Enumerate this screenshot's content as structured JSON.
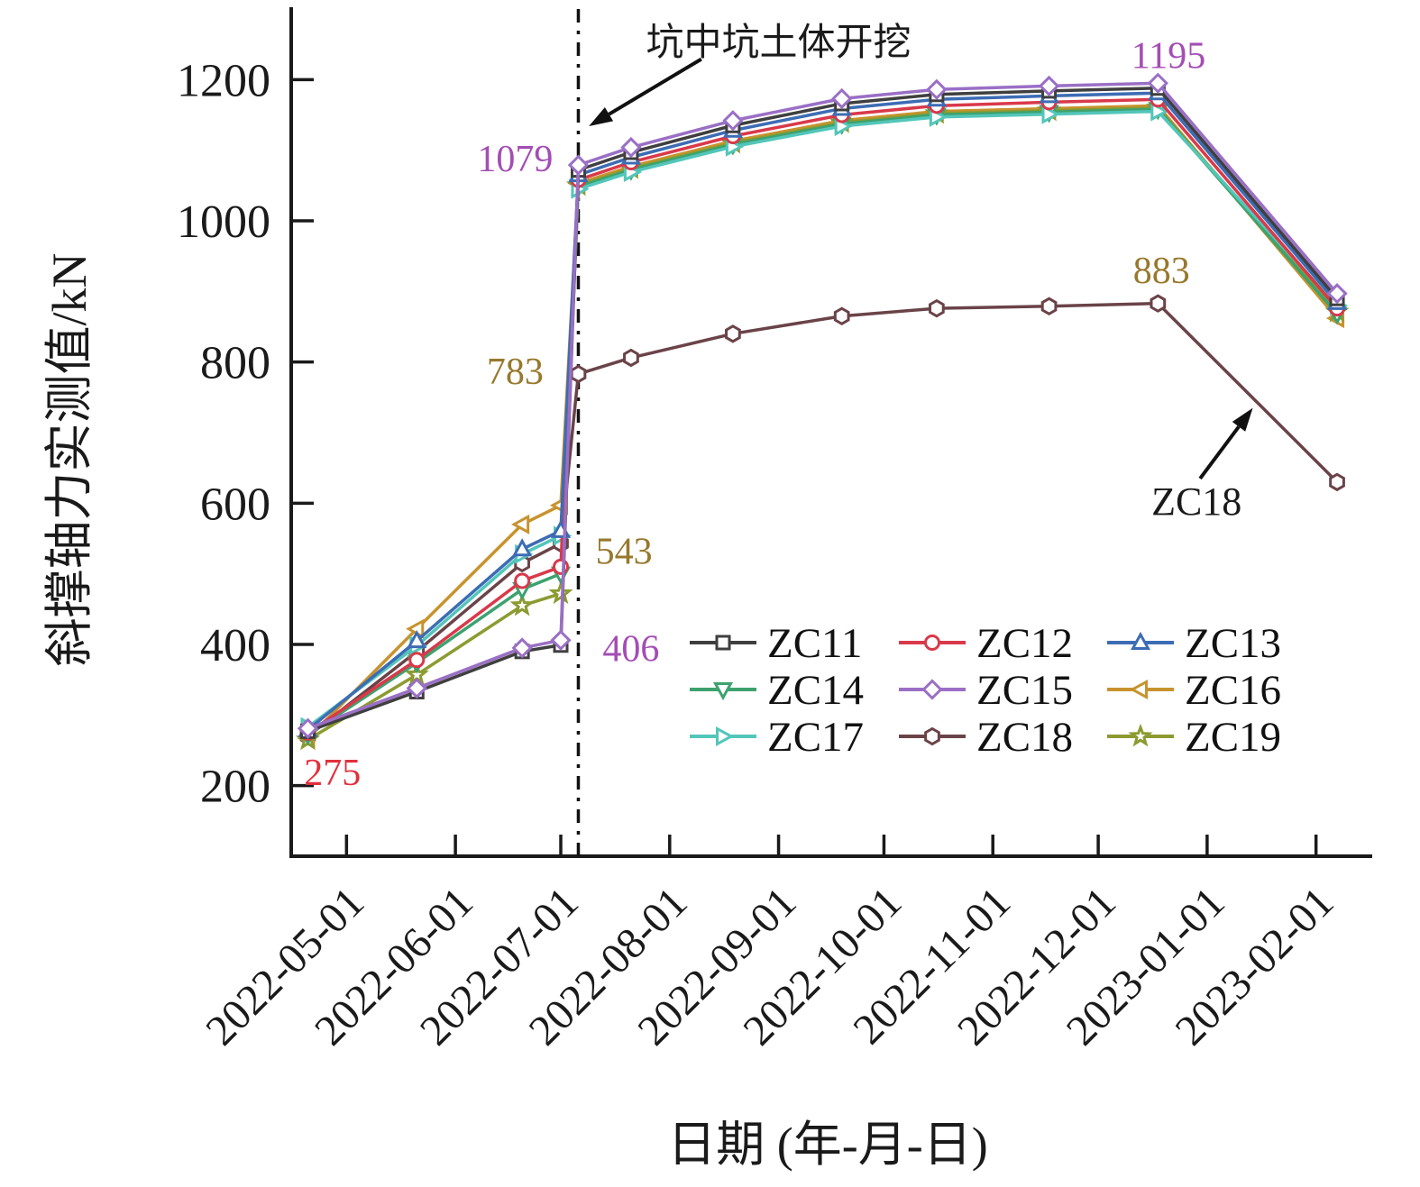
{
  "chart_data": {
    "type": "line",
    "title": "",
    "xlabel": "日期 (年-月-日)",
    "ylabel": "斜撑轴力实测值/kN",
    "grid": false,
    "legend_position": "inside lower-right (3 x 3 grid, no frame)",
    "ylim": [
      100,
      1300
    ],
    "y_ticks": [
      200,
      400,
      600,
      800,
      1000,
      1200
    ],
    "x_domain_days": [
      0,
      308
    ],
    "x_domain_dates": [
      "2022-04-15",
      "2023-02-17"
    ],
    "x_tick_labels": [
      "2022-05-01",
      "2022-06-01",
      "2022-07-01",
      "2022-08-01",
      "2022-09-01",
      "2022-10-01",
      "2022-11-01",
      "2022-12-01",
      "2023-01-01",
      "2023-02-01"
    ],
    "x_tick_days": [
      16,
      47,
      77,
      108,
      139,
      169,
      200,
      230,
      261,
      292
    ],
    "event_line": {
      "day": 82,
      "date": "2022-07-06",
      "label": "坑中坑土体开挖",
      "style": "dash-dot vertical line, black"
    },
    "sample_days": [
      5,
      36,
      66,
      77,
      82,
      97,
      126,
      157,
      184,
      216,
      247,
      298
    ],
    "sample_dates": [
      "2022-04-20",
      "2022-05-21",
      "2022-06-20",
      "2022-07-01",
      "2022-07-06",
      "2022-07-21",
      "2022-08-19",
      "2022-09-19",
      "2022-10-16",
      "2022-11-17",
      "2022-12-18",
      "2023-02-07"
    ],
    "series": [
      {
        "name": "ZC11",
        "color": "#3F3F3F",
        "marker": "square",
        "values": [
          277,
          333,
          390,
          399,
          1072,
          1097,
          1135,
          1166,
          1179,
          1184,
          1188,
          890
        ]
      },
      {
        "name": "ZC12",
        "color": "#D9394A",
        "marker": "circle",
        "values": [
          275,
          378,
          490,
          510,
          1058,
          1083,
          1120,
          1150,
          1163,
          1168,
          1172,
          876
        ]
      },
      {
        "name": "ZC13",
        "color": "#3D6CB4",
        "marker": "triangle-up",
        "values": [
          279,
          405,
          535,
          561,
          1065,
          1090,
          1128,
          1159,
          1172,
          1177,
          1181,
          884
        ]
      },
      {
        "name": "ZC14",
        "color": "#3DA26E",
        "marker": "triangle-down",
        "values": [
          272,
          374,
          478,
          500,
          1048,
          1072,
          1108,
          1137,
          1150,
          1154,
          1158,
          868
        ]
      },
      {
        "name": "ZC15",
        "color": "#9A6FC5",
        "marker": "diamond",
        "values": [
          281,
          338,
          395,
          406,
          1079,
          1104,
          1142,
          1173,
          1186,
          1191,
          1195,
          897
        ]
      },
      {
        "name": "ZC16",
        "color": "#C8932E",
        "marker": "triangle-left",
        "values": [
          267,
          422,
          570,
          597,
          1053,
          1077,
          1113,
          1142,
          1155,
          1159,
          1163,
          862
        ]
      },
      {
        "name": "ZC17",
        "color": "#53C6BA",
        "marker": "triangle-right",
        "values": [
          283,
          398,
          528,
          554,
          1045,
          1069,
          1105,
          1134,
          1147,
          1151,
          1155,
          880
        ]
      },
      {
        "name": "ZC18",
        "color": "#6A4348",
        "marker": "hexagon",
        "values": [
          270,
          390,
          515,
          543,
          783,
          806,
          840,
          865,
          876,
          879,
          883,
          630
        ]
      },
      {
        "name": "ZC19",
        "color": "#8C9B31",
        "marker": "star",
        "values": [
          265,
          357,
          455,
          472,
          1050,
          1074,
          1110,
          1139,
          1152,
          1156,
          1160,
          871
        ]
      }
    ],
    "draw_order": [
      "ZC18",
      "ZC16",
      "ZC19",
      "ZC14",
      "ZC17",
      "ZC12",
      "ZC13",
      "ZC11",
      "ZC15"
    ],
    "annotations": [
      {
        "text": "275",
        "color": "#E0313E",
        "day": 12,
        "value": 219
      },
      {
        "text": "1079",
        "color": "#A44DB5",
        "day": 64,
        "value": 1088
      },
      {
        "text": "783",
        "color": "#97792D",
        "day": 64,
        "value": 787
      },
      {
        "text": "543",
        "color": "#97792D",
        "day": 95,
        "value": 532
      },
      {
        "text": "406",
        "color": "#A44DB5",
        "day": 97,
        "value": 394
      },
      {
        "text": "1195",
        "color": "#A44DB5",
        "day": 250,
        "value": 1234
      },
      {
        "text": "883",
        "color": "#97792D",
        "day": 248,
        "value": 930
      },
      {
        "text": "ZC18",
        "color": "#1a1a1a",
        "day": 258,
        "value": 602,
        "font": 44
      },
      {
        "text": "坑中坑土体开挖",
        "color": "#1a1a1a",
        "day": 139,
        "value": 1253,
        "font": 42
      }
    ],
    "arrows": [
      {
        "name": "excavation-arrow",
        "from_day": 117,
        "from_value": 1229,
        "to_day": 85,
        "to_value": 1134
      },
      {
        "name": "zc18-arrow",
        "from_day": 259,
        "from_value": 635,
        "to_day": 274,
        "to_value": 735
      }
    ],
    "axis_color": "#1a1a1a",
    "background": "#ffffff"
  }
}
